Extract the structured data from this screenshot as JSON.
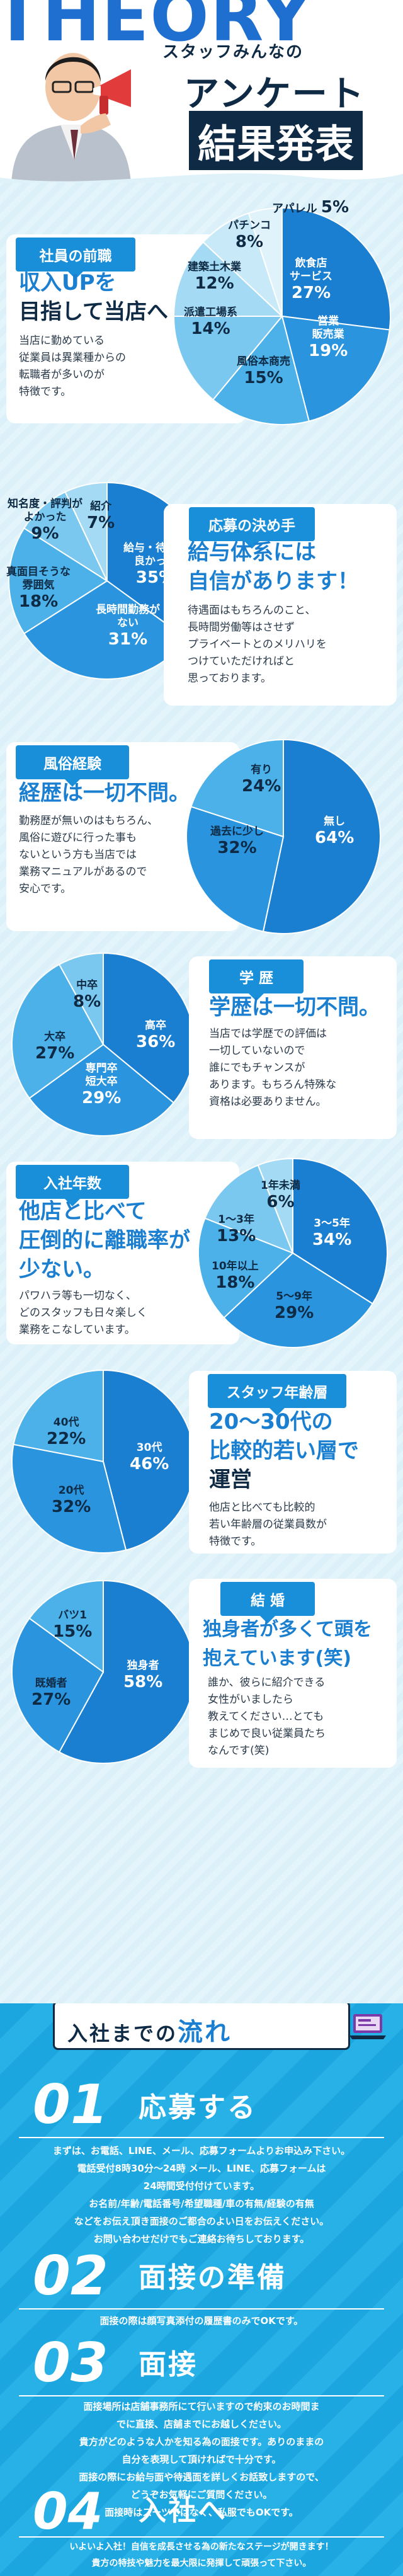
{
  "hero": {
    "deco_word": "THEORY",
    "subtitle": "スタッフみんなの",
    "title_line1": "アンケート",
    "title_line2": "結果発表"
  },
  "sections": [
    {
      "tag": "社員の前職",
      "headline_parts": [
        "収入UPを",
        "目指して当店へ"
      ],
      "body": [
        "当店に勤めている",
        "従業員は異業種からの",
        "転職者が多いのが",
        "特徴です。"
      ],
      "chart": [
        {
          "label": "飲食店\nサービス",
          "value": 27
        },
        {
          "label": "営業\n販売業",
          "value": 19
        },
        {
          "label": "風俗本商売",
          "value": 15
        },
        {
          "label": "派遣工場系",
          "value": 14
        },
        {
          "label": "建築土木業",
          "value": 12
        },
        {
          "label": "パチンコ",
          "value": 8
        },
        {
          "label": "アパレル",
          "value": 5
        }
      ]
    },
    {
      "tag": "応募の決め手",
      "headline_parts": [
        "給与体系には",
        "自信があります！"
      ],
      "body": [
        "待遇面はもちろんのこと、",
        "長時間労働等はさせず",
        "プライベートとのメリハリを",
        "つけていただければと",
        "思っております。"
      ],
      "chart": [
        {
          "label": "給与・待遇が\n良かった",
          "value": 35
        },
        {
          "label": "長時間勤務が\nない",
          "value": 31
        },
        {
          "label": "真面目そうな\n雰囲気",
          "value": 18
        },
        {
          "label": "知名度・評判が\nよかった",
          "value": 9
        },
        {
          "label": "紹介",
          "value": 7
        }
      ]
    },
    {
      "tag": "風俗経験",
      "headline_parts": [
        "経歴は一切不問。"
      ],
      "body": [
        "勤務歴が無いのはもちろん、",
        "風俗に遊びに行った事も",
        "ないという方も当店では",
        "業務マニュアルがあるので",
        "安心です。"
      ],
      "chart": [
        {
          "label": "無し",
          "value": 64
        },
        {
          "label": "過去に少し",
          "value": 32
        },
        {
          "label": "有り",
          "value": 24
        }
      ]
    },
    {
      "tag": "学 歴",
      "headline_parts": [
        "学歴は一切不問。"
      ],
      "body": [
        "当店では学歴での評価は",
        "一切していないので",
        "誰にでもチャンスが",
        "あります。もちろん特殊な",
        "資格は必要ありません。"
      ],
      "chart": [
        {
          "label": "高卒",
          "value": 36
        },
        {
          "label": "専門卒\n短大卒",
          "value": 29
        },
        {
          "label": "大卒",
          "value": 27
        },
        {
          "label": "中卒",
          "value": 8
        }
      ]
    },
    {
      "tag": "入社年数",
      "headline_parts": [
        "他店と比べて",
        "圧倒的に離職率が",
        "少ない。"
      ],
      "body": [
        "パワハラ等も一切なく、",
        "どのスタッフも日々楽しく",
        "業務をこなしています。"
      ],
      "chart": [
        {
          "label": "3〜5年",
          "value": 34
        },
        {
          "label": "5〜9年",
          "value": 29
        },
        {
          "label": "10年以上",
          "value": 18
        },
        {
          "label": "1〜3年",
          "value": 13
        },
        {
          "label": "1年未満",
          "value": 6
        }
      ]
    },
    {
      "tag": "スタッフ年齢層",
      "headline_parts": [
        "20〜30代の",
        "比較的若い層で",
        "運営"
      ],
      "body": [
        "他店と比べても比較的",
        "若い年齢層の従業員数が",
        "特徴です。"
      ],
      "chart": [
        {
          "label": "30代",
          "value": 46
        },
        {
          "label": "20代",
          "value": 32
        },
        {
          "label": "40代",
          "value": 22
        }
      ]
    },
    {
      "tag": "結 婚",
      "headline_parts": [
        "独身者が多くて頭を",
        "抱えています(笑)"
      ],
      "body": [
        "誰か、彼らに紹介できる",
        "女性がいましたら",
        "教えてください…とても",
        "まじめで良い従業員たち",
        "なんです(笑)"
      ],
      "chart": [
        {
          "label": "独身者",
          "value": 58
        },
        {
          "label": "既婚者",
          "value": 27
        },
        {
          "label": "バツ1",
          "value": 15
        }
      ]
    }
  ],
  "flow": {
    "title_pre": "入社までの",
    "title_big": "流れ",
    "steps": [
      {
        "num": "01",
        "title": "応募する",
        "body": [
          "まずは、お電話、LINE、メール、応募フォームよりお申込み下さい。",
          "電話受付8時30分〜24時 メール、LINE、応募フォームは",
          "24時間受付付けています。",
          "お名前/年齢/電話番号/希望職種/車の有無/経験の有無",
          "などをお伝え頂き面接のご都合のよい日をお伝えください。",
          "お問い合わせだけでもご連絡お待ちしております。"
        ]
      },
      {
        "num": "02",
        "title": "面接の準備",
        "body": [
          "面接の際は顔写真添付の履歴書のみでOKです。"
        ]
      },
      {
        "num": "03",
        "title": "面接",
        "body": [
          "面接場所は店舗事務所にて行いますので約束のお時間ま",
          "でに直接、店舗までにお越しください。",
          "貴方がどのような人かを知る為の面接です。ありのままの",
          "自分を表現して頂ければで十分です。",
          "面接の際にお給与面や待遇面を詳しくお話致しますので、",
          "どうぞお気軽にご質問ください。",
          "面接時はスーツではなく、私服でもOKです。"
        ]
      },
      {
        "num": "04",
        "title": "入社へ",
        "body": [
          "いよいよ入社！自信を成長させる為の新たなステージが開きます！",
          "貴方の特技や魅力を最大限に発揮して頑張って下さい。"
        ]
      }
    ]
  },
  "colors": {
    "navy": "#0e2a44",
    "blue": "#1a7fd0",
    "sky": "#1ca6df",
    "pie": [
      "#1a7fd0",
      "#2a95de",
      "#4bb1e8",
      "#7ac8ef",
      "#a5daf4",
      "#c8e9f8",
      "#e0f3fb"
    ]
  }
}
